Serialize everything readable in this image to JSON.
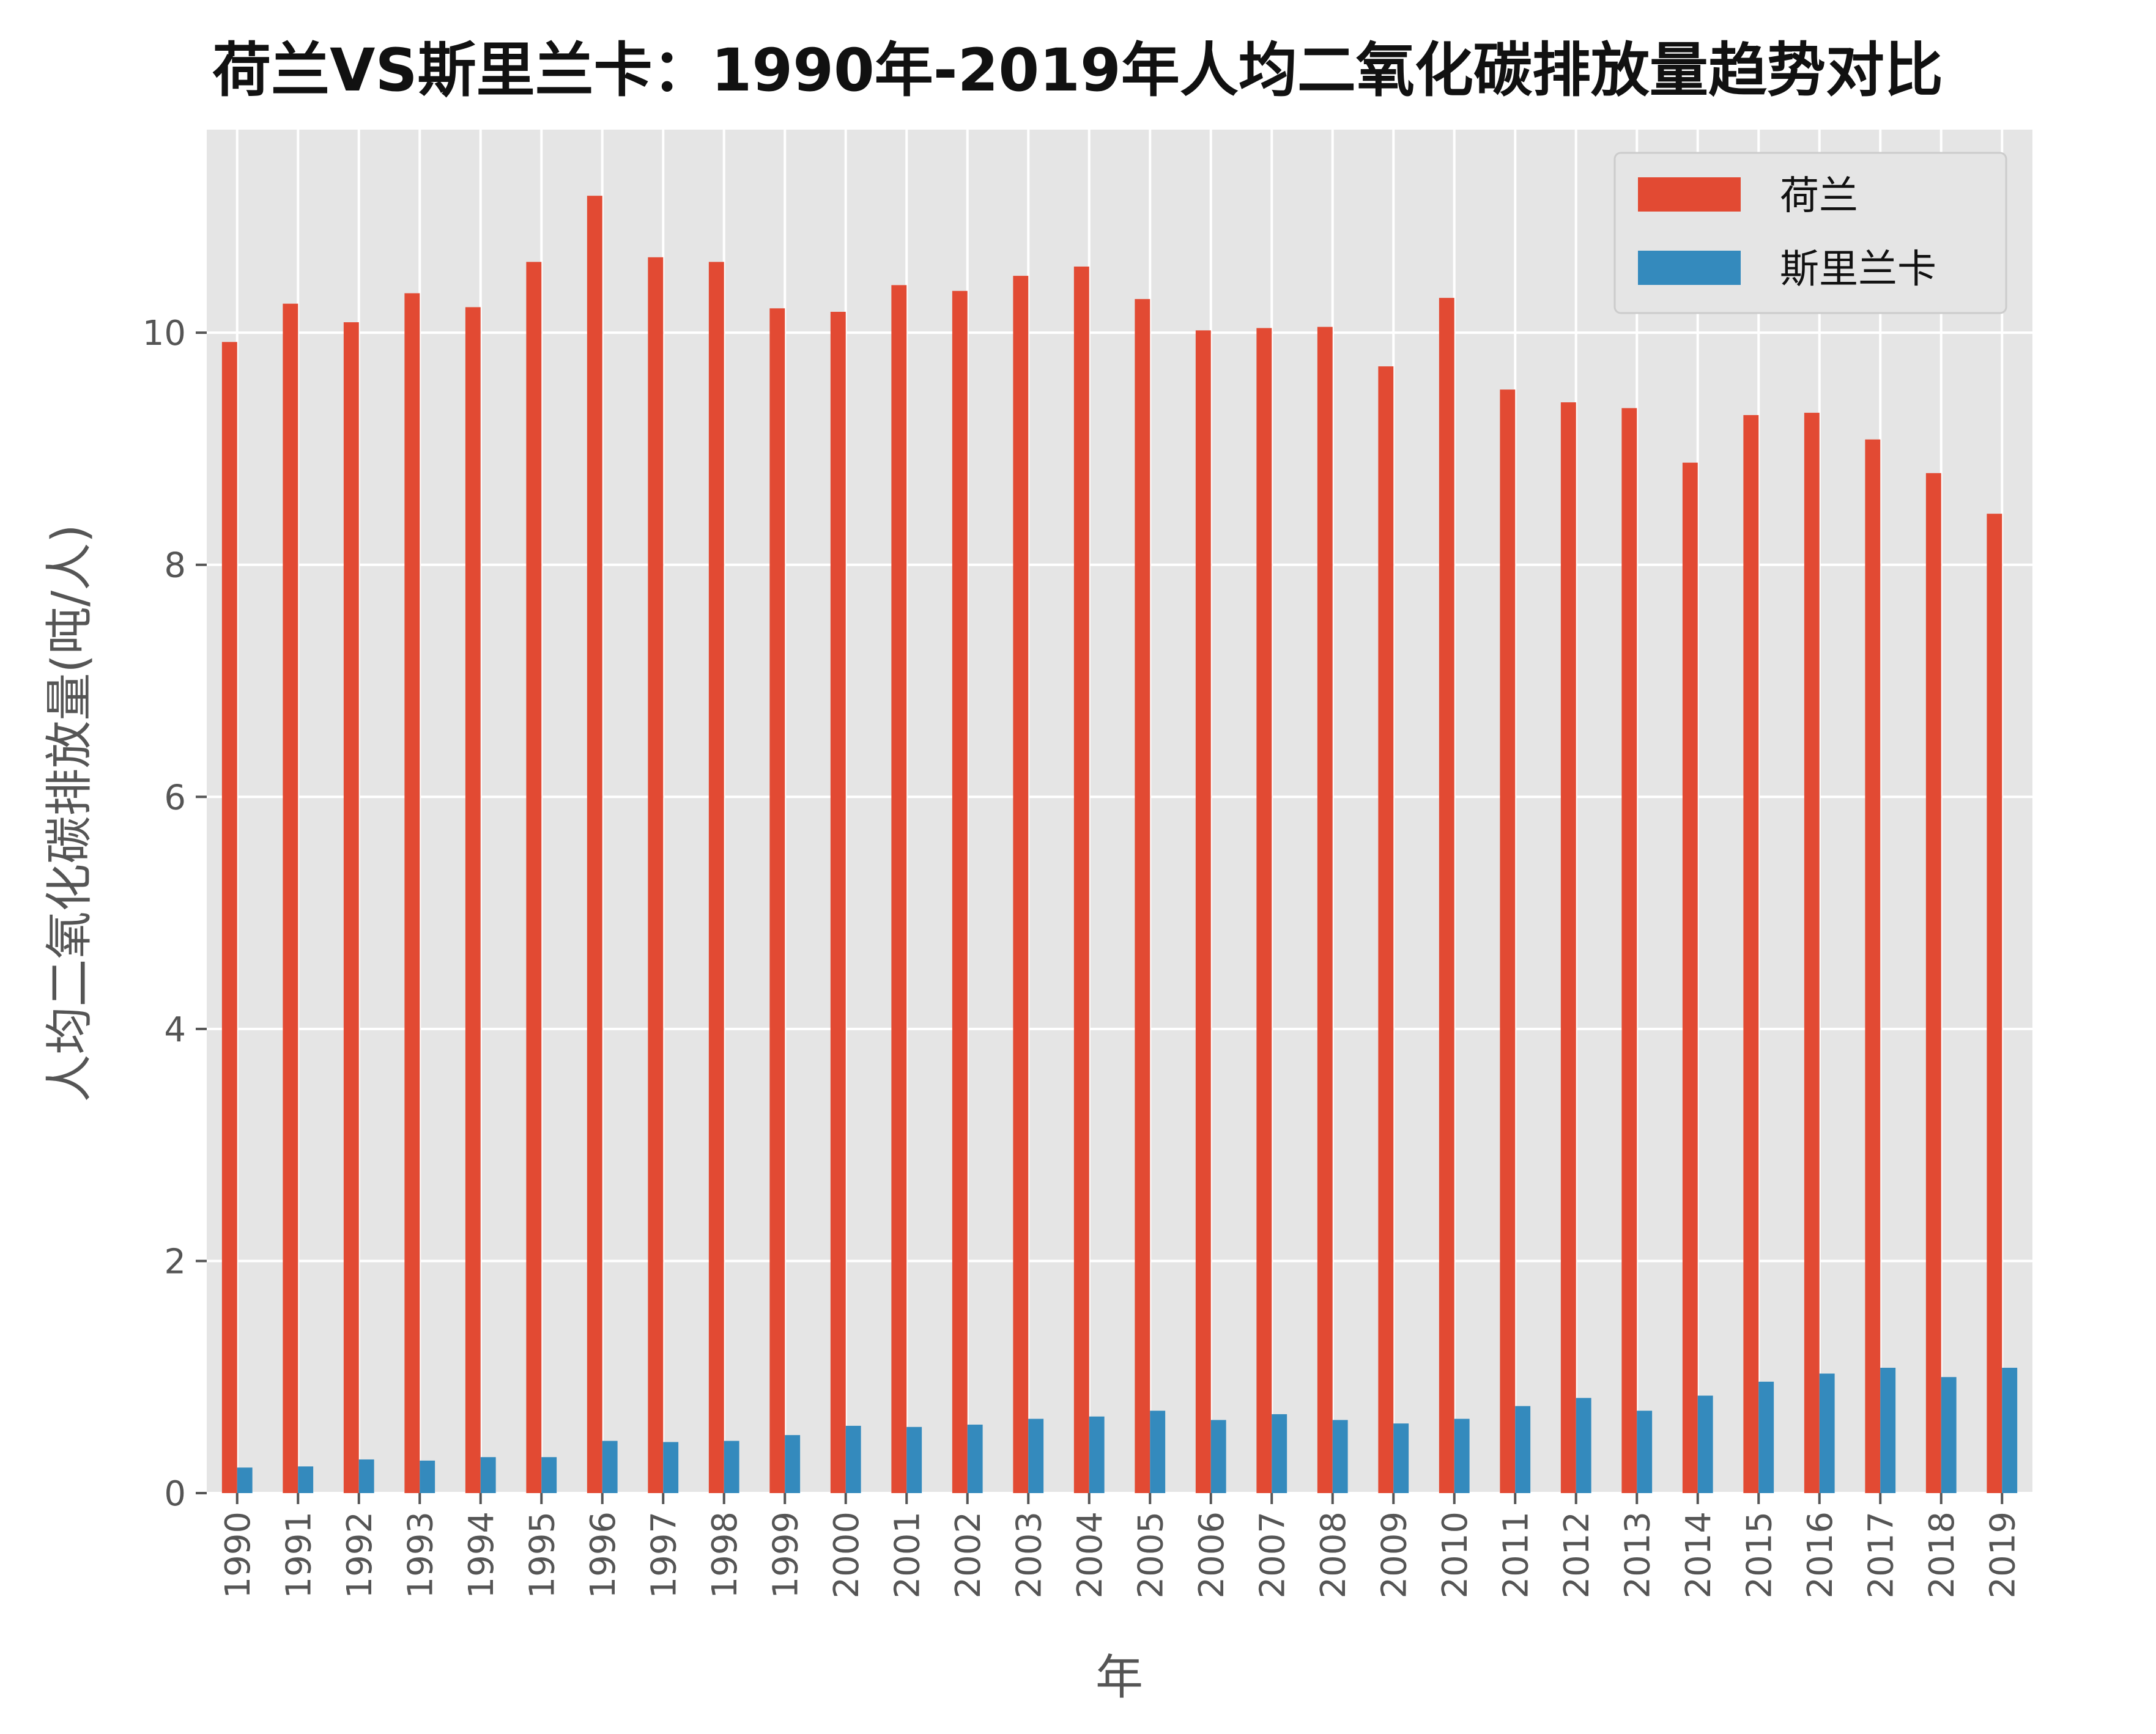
{
  "chart_data": {
    "type": "bar",
    "title": "荷兰VS斯里兰卡：1990年-2019年人均二氧化碳排放量趋势对比",
    "xlabel": "年",
    "ylabel": "人均二氧化碳排放量(吨/人)",
    "ylim": [
      0,
      11.75
    ],
    "yticks": [
      0,
      2,
      4,
      6,
      8,
      10
    ],
    "grid": true,
    "legend_position": "top-right",
    "categories": [
      "1990",
      "1991",
      "1992",
      "1993",
      "1994",
      "1995",
      "1996",
      "1997",
      "1998",
      "1999",
      "2000",
      "2001",
      "2002",
      "2003",
      "2004",
      "2005",
      "2006",
      "2007",
      "2008",
      "2009",
      "2010",
      "2011",
      "2012",
      "2013",
      "2014",
      "2015",
      "2016",
      "2017",
      "2018",
      "2019"
    ],
    "series": [
      {
        "name": "荷兰",
        "color": "#E24A33",
        "values": [
          9.92,
          10.25,
          10.09,
          10.34,
          10.22,
          10.61,
          11.18,
          10.65,
          10.61,
          10.21,
          10.18,
          10.41,
          10.36,
          10.49,
          10.57,
          10.29,
          10.02,
          10.04,
          10.05,
          9.71,
          10.3,
          9.51,
          9.4,
          9.35,
          8.88,
          9.29,
          9.31,
          9.08,
          8.79,
          8.44
        ]
      },
      {
        "name": "斯里兰卡",
        "color": "#348ABD",
        "values": [
          0.22,
          0.23,
          0.29,
          0.28,
          0.31,
          0.31,
          0.45,
          0.44,
          0.45,
          0.5,
          0.58,
          0.57,
          0.59,
          0.64,
          0.66,
          0.71,
          0.63,
          0.68,
          0.63,
          0.6,
          0.64,
          0.75,
          0.82,
          0.71,
          0.84,
          0.96,
          1.03,
          1.08,
          1.0,
          1.08
        ]
      }
    ]
  },
  "style": {
    "plot_bg": "#E5E5E5",
    "grid_color": "#FFFFFF",
    "text_color": "#555555"
  }
}
